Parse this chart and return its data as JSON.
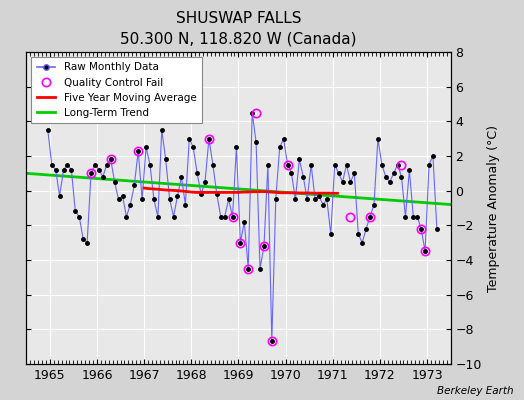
{
  "title": "SHUSWAP FALLS",
  "subtitle": "50.300 N, 118.820 W (Canada)",
  "credit": "Berkeley Earth",
  "ylabel": "Temperature Anomaly (°C)",
  "xlim": [
    1964.5,
    1973.5
  ],
  "ylim": [
    -10,
    8
  ],
  "yticks": [
    -10,
    -8,
    -6,
    -4,
    -2,
    0,
    2,
    4,
    6,
    8
  ],
  "xticks": [
    1965,
    1966,
    1967,
    1968,
    1969,
    1970,
    1971,
    1972,
    1973
  ],
  "fig_bg": "#d4d4d4",
  "ax_bg": "#e8e8e8",
  "raw_x": [
    1964.958,
    1965.042,
    1965.125,
    1965.208,
    1965.292,
    1965.375,
    1965.458,
    1965.542,
    1965.625,
    1965.708,
    1965.792,
    1965.875,
    1965.958,
    1966.042,
    1966.125,
    1966.208,
    1966.292,
    1966.375,
    1966.458,
    1966.542,
    1966.625,
    1966.708,
    1966.792,
    1966.875,
    1966.958,
    1967.042,
    1967.125,
    1967.208,
    1967.292,
    1967.375,
    1967.458,
    1967.542,
    1967.625,
    1967.708,
    1967.792,
    1967.875,
    1967.958,
    1968.042,
    1968.125,
    1968.208,
    1968.292,
    1968.375,
    1968.458,
    1968.542,
    1968.625,
    1968.708,
    1968.792,
    1968.875,
    1968.958,
    1969.042,
    1969.125,
    1969.208,
    1969.292,
    1969.375,
    1969.458,
    1969.542,
    1969.625,
    1969.708,
    1969.792,
    1969.875,
    1969.958,
    1970.042,
    1970.125,
    1970.208,
    1970.292,
    1970.375,
    1970.458,
    1970.542,
    1970.625,
    1970.708,
    1970.792,
    1970.875,
    1970.958,
    1971.042,
    1971.125,
    1971.208,
    1971.292,
    1971.375,
    1971.458,
    1971.542,
    1971.625,
    1971.708,
    1971.792,
    1971.875,
    1971.958,
    1972.042,
    1972.125,
    1972.208,
    1972.292,
    1972.375,
    1972.458,
    1972.542,
    1972.625,
    1972.708,
    1972.792,
    1972.875,
    1972.958,
    1973.042,
    1973.125,
    1973.208
  ],
  "raw_y": [
    3.5,
    1.5,
    1.2,
    -0.3,
    1.2,
    1.5,
    1.2,
    -1.2,
    -1.5,
    -2.8,
    -3.0,
    1.0,
    1.5,
    1.2,
    0.8,
    1.5,
    1.8,
    0.5,
    -0.5,
    -0.3,
    -1.5,
    -0.8,
    0.3,
    2.3,
    -0.5,
    2.5,
    1.5,
    -0.5,
    -1.5,
    3.5,
    1.8,
    -0.5,
    -1.5,
    -0.3,
    0.8,
    -0.8,
    3.0,
    2.5,
    1.0,
    -0.2,
    0.5,
    3.0,
    1.5,
    -0.2,
    -1.5,
    -1.5,
    -0.5,
    -1.5,
    2.5,
    -3.0,
    -1.8,
    -4.5,
    4.5,
    2.8,
    -4.5,
    -3.2,
    1.5,
    -8.7,
    -0.5,
    2.5,
    3.0,
    1.5,
    1.0,
    -0.5,
    1.8,
    0.8,
    -0.5,
    1.5,
    -0.5,
    -0.3,
    -0.8,
    -0.5,
    -2.5,
    1.5,
    1.0,
    0.5,
    1.5,
    0.5,
    1.0,
    -2.5,
    -3.0,
    -2.2,
    -1.5,
    -0.8,
    3.0,
    1.5,
    0.8,
    0.5,
    1.0,
    1.5,
    0.8,
    -1.5,
    1.2,
    -1.5,
    -1.5,
    -2.2,
    -3.5,
    1.5,
    2.0,
    -2.2
  ],
  "qc_fail_x": [
    1965.875,
    1966.292,
    1966.875,
    1968.375,
    1968.875,
    1969.042,
    1969.208,
    1969.375,
    1969.542,
    1969.708,
    1970.042,
    1971.375,
    1971.792,
    1972.458,
    1972.875,
    1972.958
  ],
  "qc_fail_y": [
    1.0,
    1.8,
    2.3,
    3.0,
    -1.5,
    -3.0,
    -4.5,
    4.5,
    -3.2,
    -8.7,
    1.5,
    -1.5,
    -1.5,
    1.5,
    -2.2,
    -3.5
  ],
  "moving_avg_x": [
    1967.0,
    1967.1,
    1967.2,
    1967.3,
    1967.4,
    1967.5,
    1967.6,
    1967.7,
    1967.8,
    1967.9,
    1968.0,
    1968.1,
    1968.2,
    1968.3,
    1968.4,
    1968.5,
    1968.6,
    1968.7,
    1968.8,
    1968.9,
    1969.0,
    1969.1,
    1969.2,
    1969.3,
    1969.4,
    1969.5,
    1969.6,
    1969.7,
    1969.8,
    1969.9,
    1970.0,
    1970.1,
    1970.2,
    1970.3,
    1970.4,
    1970.5,
    1970.6,
    1970.7,
    1970.8,
    1970.9,
    1971.0,
    1971.1
  ],
  "moving_avg_y": [
    0.15,
    0.12,
    0.1,
    0.08,
    0.05,
    0.03,
    0.02,
    0.0,
    -0.02,
    -0.05,
    -0.08,
    -0.1,
    -0.1,
    -0.1,
    -0.1,
    -0.1,
    -0.1,
    -0.1,
    -0.1,
    -0.1,
    -0.1,
    -0.08,
    -0.08,
    -0.06,
    -0.06,
    -0.05,
    -0.06,
    -0.08,
    -0.1,
    -0.12,
    -0.12,
    -0.12,
    -0.12,
    -0.13,
    -0.13,
    -0.13,
    -0.14,
    -0.14,
    -0.14,
    -0.14,
    -0.15,
    -0.15
  ],
  "trend_x": [
    1964.5,
    1973.5
  ],
  "trend_y": [
    1.0,
    -0.8
  ],
  "line_color": "#6666ff",
  "marker_color": "#000000",
  "qc_color": "#ff00ff",
  "moving_avg_color": "#ff0000",
  "trend_color": "#00cc00"
}
